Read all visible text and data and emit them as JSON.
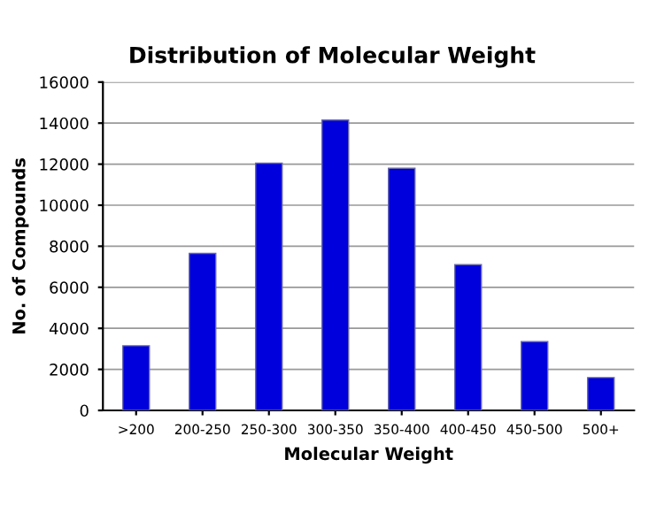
{
  "chart_data": {
    "type": "bar",
    "title": "Distribution of Molecular Weight",
    "xlabel": "Molecular Weight",
    "ylabel": "No. of Compounds",
    "categories": [
      ">200",
      "200-250",
      "250-300",
      "300-350",
      "350-400",
      "400-450",
      "450-500",
      "500+"
    ],
    "values": [
      3150,
      7650,
      12050,
      14150,
      11800,
      7100,
      3350,
      1600
    ],
    "color": "#0000dd",
    "ylim": [
      0,
      16000
    ],
    "yticks": [
      0,
      2000,
      4000,
      6000,
      8000,
      10000,
      12000,
      14000,
      16000
    ],
    "grid": "y"
  }
}
